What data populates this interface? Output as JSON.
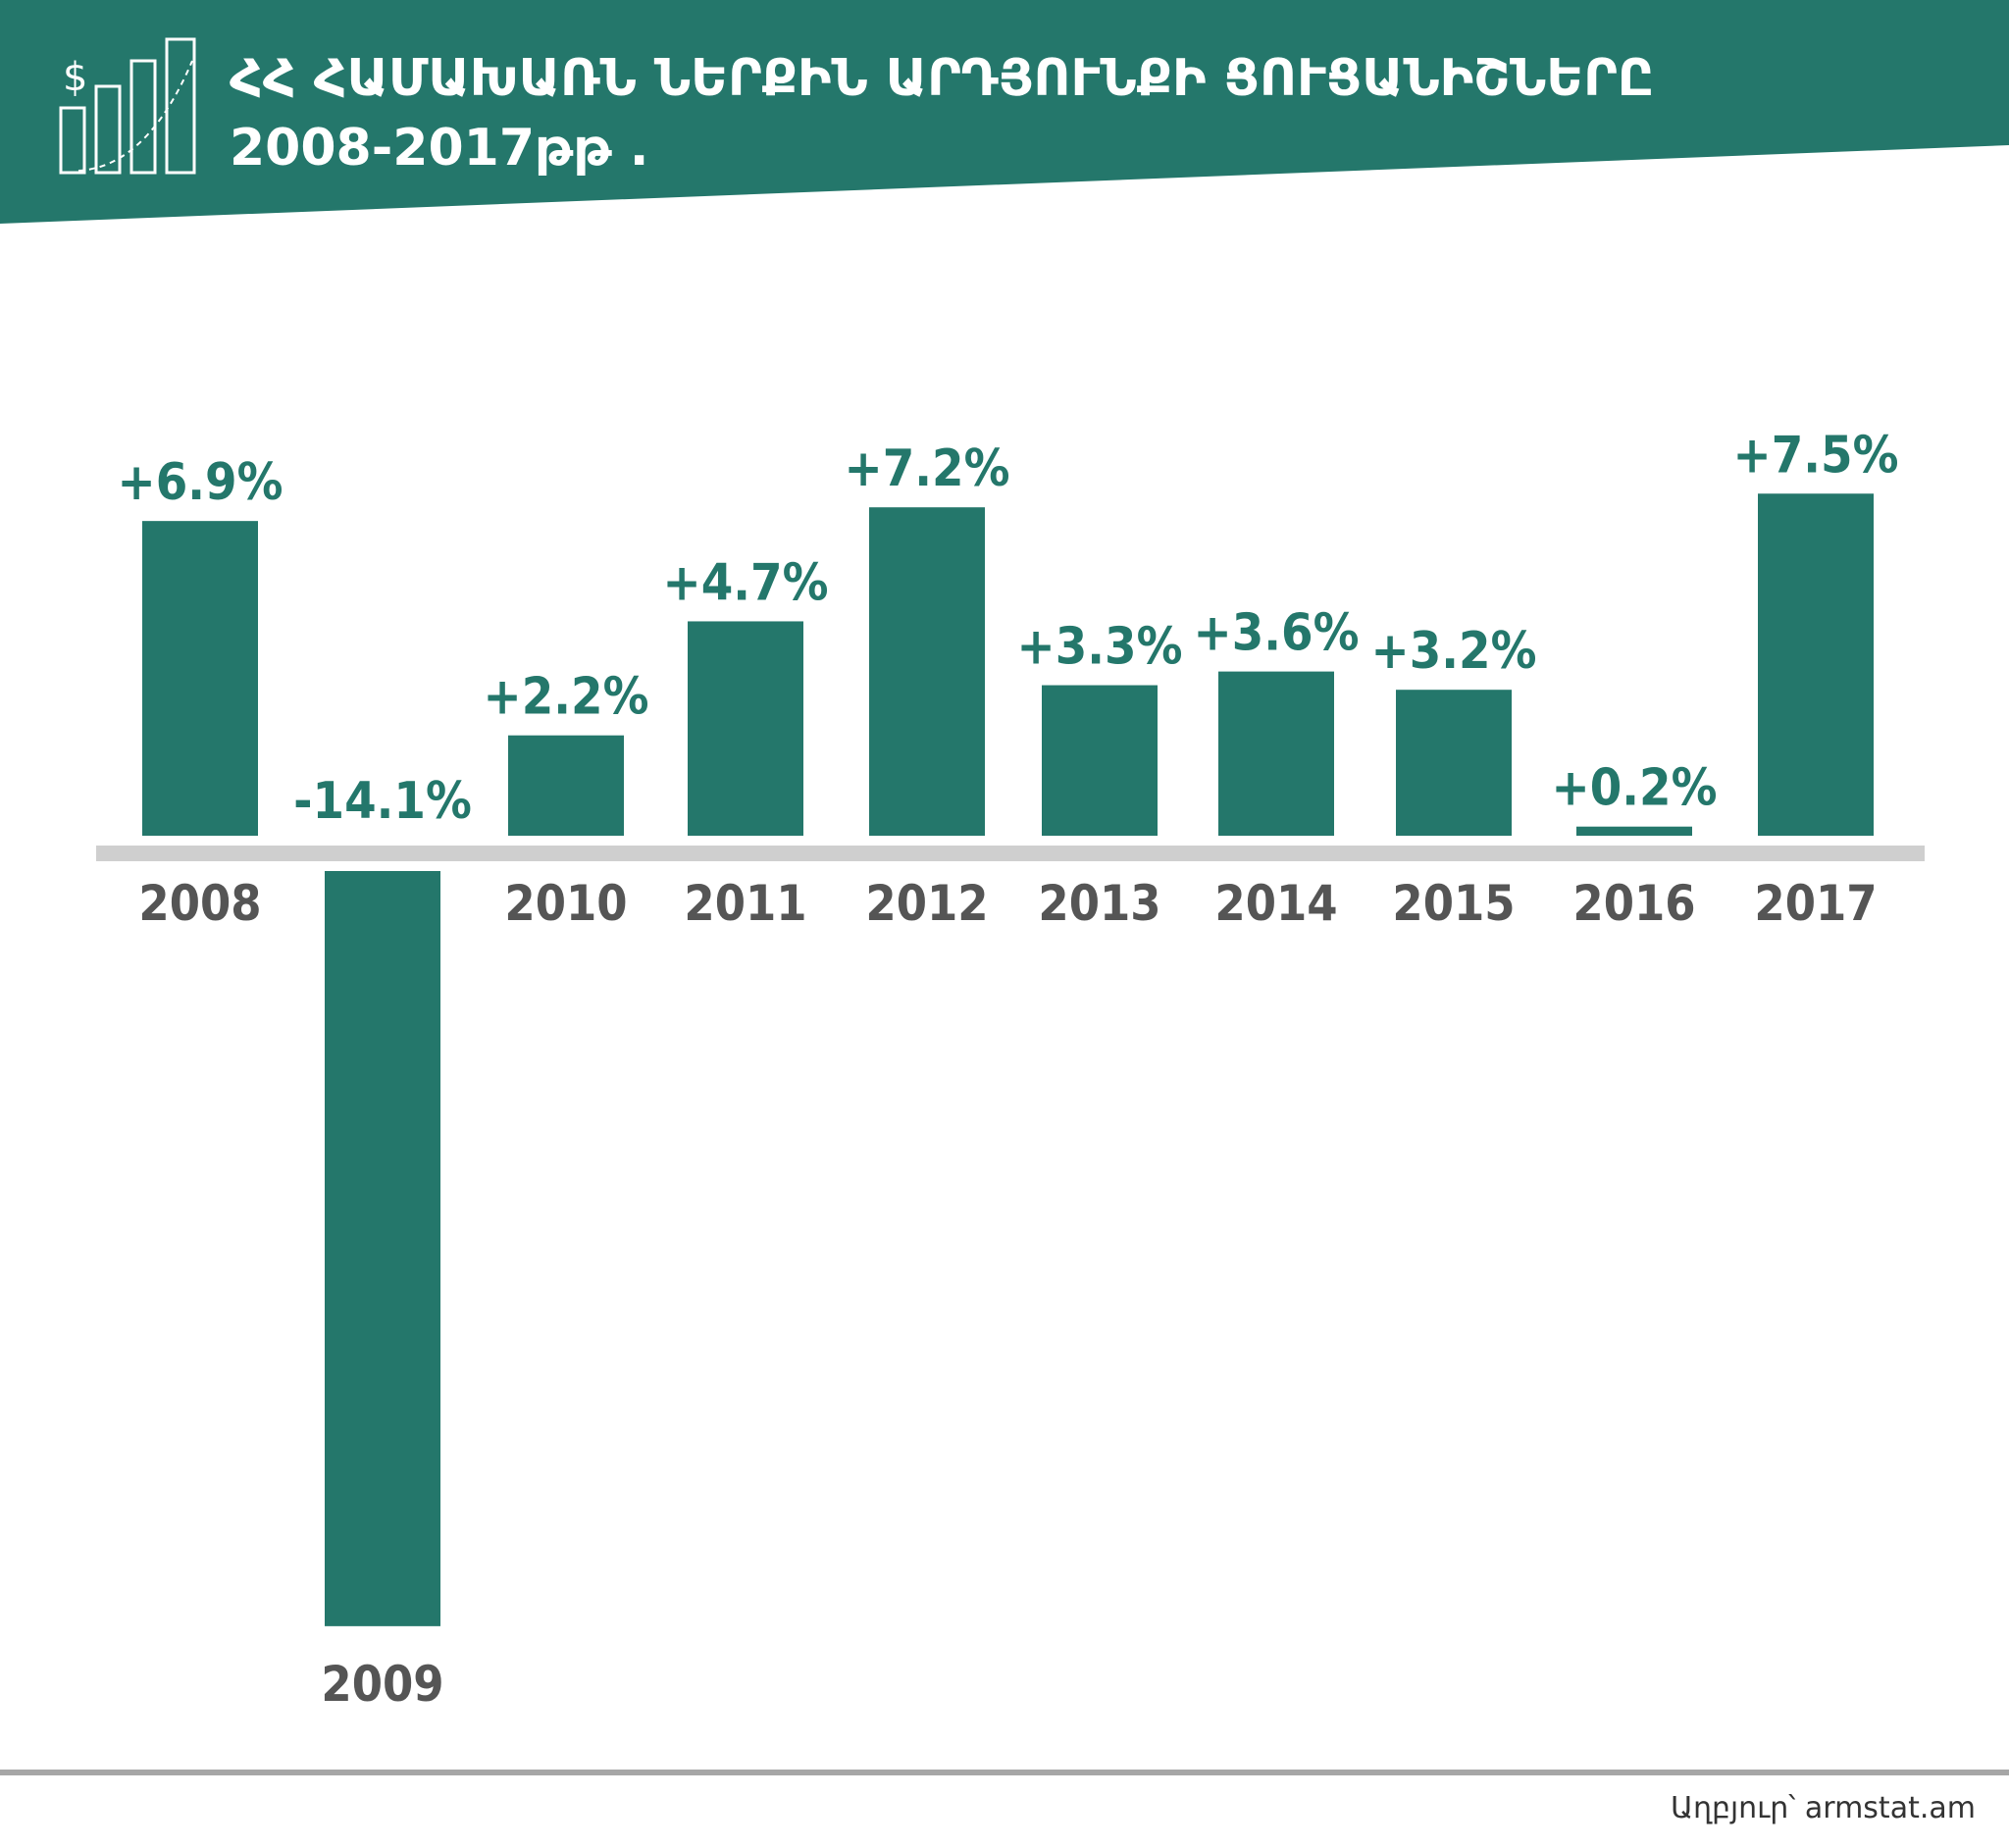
{
  "header": {
    "title_line1": "ՀՀ ՀԱՄԱԽԱՌՆ ՆԵՐՔԻՆ ԱՐԴՅՈՒՆՔԻ ՑՈՒՑԱՆԻՇՆԵՐԸ",
    "title_line2": "2008-2017թթ .",
    "icon": "growth-bar-chart-dollar-icon"
  },
  "colors": {
    "accent": "#24776b",
    "axis": "#cfcfcf",
    "year_text": "#555555",
    "footer_line": "#a6a6a6"
  },
  "chart_data": {
    "type": "bar",
    "categories": [
      "2008",
      "2009",
      "2010",
      "2011",
      "2012",
      "2013",
      "2014",
      "2015",
      "2016",
      "2017"
    ],
    "values": [
      6.9,
      -14.1,
      2.2,
      4.7,
      7.2,
      3.3,
      3.6,
      3.2,
      0.2,
      7.5
    ],
    "value_labels": [
      "+6.9%",
      "-14.1%",
      "+2.2%",
      "+4.7%",
      "+7.2%",
      "+3.3%",
      "+3.6%",
      "+3.2%",
      "+0.2%",
      "+7.5%"
    ],
    "title": "ՀՀ ՀԱՄԱԽԱՌՆ ՆԵՐՔԻՆ ԱՐԴՅՈՒՆՔԻ ՑՈՒՑԱՆԻՇՆԵՐԸ 2008-2017թթ .",
    "xlabel": "",
    "ylabel": "",
    "grid": false
  },
  "footer": {
    "source": "Աղբյուր՝ armstat.am"
  }
}
